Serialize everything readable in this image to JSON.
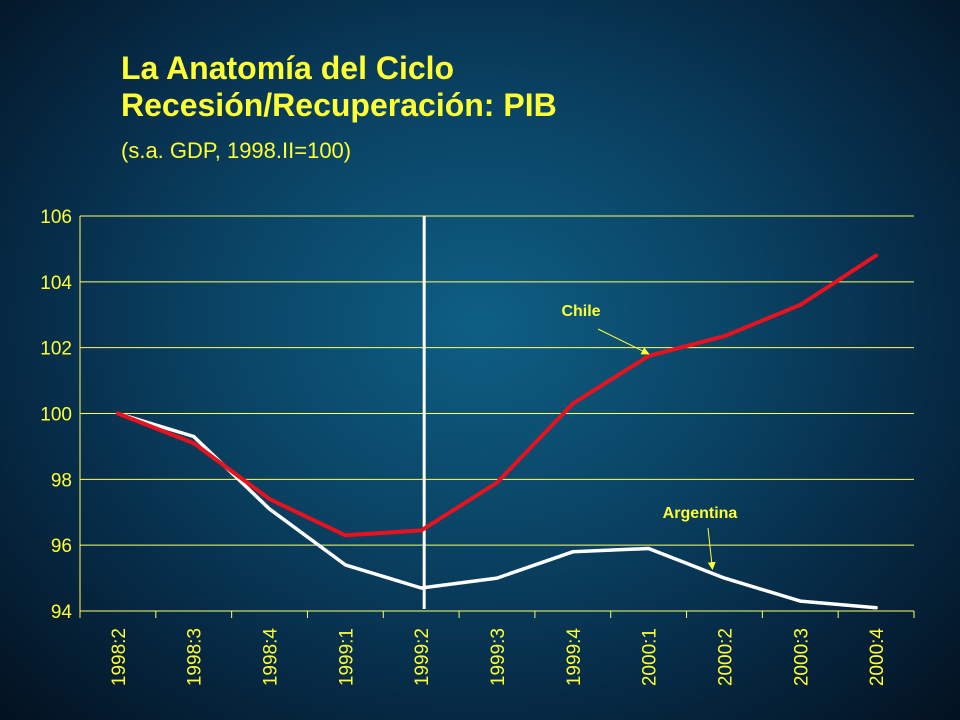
{
  "title_line1": "La Anatomía del Ciclo",
  "title_line2": "Recesión/Recuperación: PIB",
  "subtitle": "(s.a. GDP, 1998.II=100)",
  "chart_data": {
    "type": "line",
    "categories": [
      "1998:2",
      "1998:3",
      "1998:4",
      "1999:1",
      "1999:2",
      "1999:3",
      "1999:4",
      "2000:1",
      "2000:2",
      "2000:3",
      "2000:4"
    ],
    "series": [
      {
        "name": "Chile",
        "color": "#e8121e",
        "values": [
          100.0,
          99.1,
          97.4,
          96.3,
          96.45,
          97.9,
          100.3,
          101.75,
          102.35,
          103.3,
          104.8
        ]
      },
      {
        "name": "Argentina",
        "color": "#ffffff",
        "values": [
          100.0,
          99.3,
          97.1,
          95.4,
          94.7,
          95.0,
          95.8,
          95.9,
          95.0,
          94.3,
          94.1
        ]
      }
    ],
    "ylim": [
      94,
      106
    ],
    "yticks": [
      "94",
      "96",
      "98",
      "100",
      "102",
      "104",
      "106"
    ],
    "vertical_marker_category": "1999:2",
    "grid": "horizontal",
    "grid_color": "#ffff66",
    "text_color": "#ffff33",
    "annotations": [
      {
        "text": "Chile",
        "series": "Chile"
      },
      {
        "text": "Argentina",
        "series": "Argentina"
      }
    ]
  }
}
